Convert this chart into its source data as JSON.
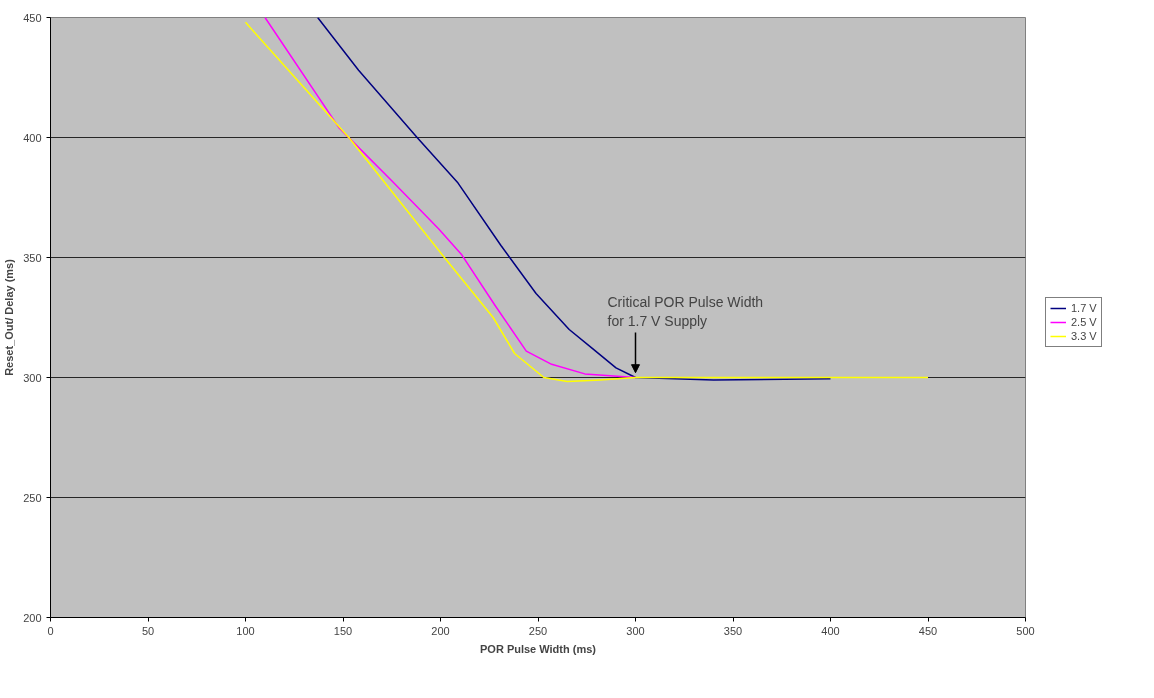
{
  "chart_data": {
    "type": "line",
    "xlabel": "POR Pulse Width (ms)",
    "ylabel": "Reset_Out/ Delay (ms)",
    "xlim": [
      0,
      500
    ],
    "xticks": [
      0,
      50,
      100,
      150,
      200,
      250,
      300,
      350,
      400,
      450,
      500
    ],
    "ylim": [
      200,
      450
    ],
    "yticks": [
      200,
      250,
      300,
      350,
      400,
      450
    ],
    "grid": "y",
    "legend": "right",
    "line_style": "solid",
    "marker": "none",
    "series": [
      {
        "name": "1.7 V",
        "color": "#000080",
        "x": [
          137,
          158,
          188,
          209,
          231,
          249,
          266,
          278,
          290,
          300,
          340,
          400
        ],
        "values": [
          450,
          428,
          400,
          381,
          355,
          335,
          320,
          312,
          304,
          300,
          299,
          299.5
        ]
      },
      {
        "name": "2.5 V",
        "color": "#ff00ff",
        "x": [
          110,
          148,
          175,
          199,
          211,
          228,
          244,
          257,
          274,
          300
        ],
        "values": [
          450,
          404,
          382,
          362,
          351,
          330,
          311,
          305.5,
          301.5,
          300
        ]
      },
      {
        "name": "3.3 V",
        "color": "#ffff00",
        "x": [
          100,
          153,
          202,
          227,
          238,
          253,
          265,
          282,
          300,
          450
        ],
        "values": [
          448,
          400,
          350,
          325,
          310,
          300,
          298.3,
          299,
          300,
          300
        ]
      }
    ],
    "annotations": [
      {
        "text": "Critical POR Pulse Width\nfor 1.7 V Supply",
        "x": 300,
        "y": 300
      }
    ]
  }
}
